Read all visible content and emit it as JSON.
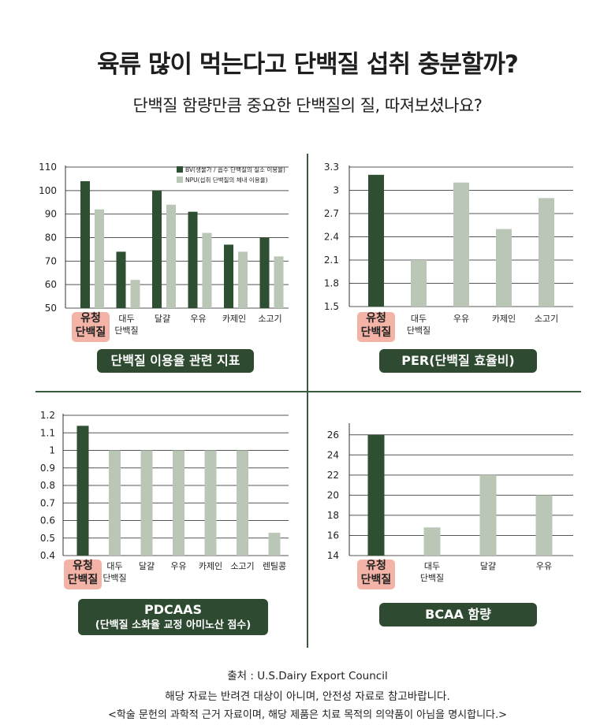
{
  "header": {
    "title": "육류 많이 먹는다고 단백질 섭취 충분할까?",
    "subtitle": "단백질 함량만큼 중요한 단백질의 질, 따져보셨나요?"
  },
  "colors": {
    "dark": "#2e4f31",
    "light": "#bac7b6",
    "highlight": "#f4b3a7",
    "grid": "#555555",
    "pill": "#2e4a31"
  },
  "chart_data": [
    {
      "id": "c1",
      "type": "bar",
      "categories": [
        "유청\n단백질",
        "대두\n단백질",
        "달걀",
        "우유",
        "카제인",
        "소고기"
      ],
      "highlight_index": 0,
      "series": [
        {
          "name": "BV(생물가 / 흡수 단백질의 질소 이용율)",
          "values": [
            104,
            74,
            100,
            91,
            77,
            80
          ],
          "color": "#2e4f31"
        },
        {
          "name": "NPU(섭취 단백질의 체내 이용율)",
          "values": [
            92,
            62,
            94,
            82,
            74,
            72
          ],
          "color": "#bac7b6"
        }
      ],
      "yticks": [
        "110",
        "100",
        "90",
        "80",
        "70",
        "60",
        "50"
      ],
      "ylim": [
        50,
        110
      ],
      "grid": true,
      "legend": "top-right",
      "title_lines": [
        "단백질 이용율 관련 지표"
      ]
    },
    {
      "id": "c2",
      "type": "bar",
      "categories": [
        "유청\n단백질",
        "대두\n단백질",
        "우유",
        "카제인",
        "소고기"
      ],
      "highlight_index": 0,
      "values": [
        3.2,
        2.1,
        3.1,
        2.5,
        2.9
      ],
      "yticks": [
        "3.3",
        "3",
        "2.7",
        "2.4",
        "2.1",
        "1.8",
        "1.5"
      ],
      "ylim": [
        1.5,
        3.3
      ],
      "grid": true,
      "title_lines": [
        "PER(단백질 효율비)"
      ]
    },
    {
      "id": "c3",
      "type": "bar",
      "categories": [
        "유청\n단백질",
        "대두\n단백질",
        "달걀",
        "우유",
        "카제인",
        "소고기",
        "렌틸콩"
      ],
      "highlight_index": 0,
      "values": [
        1.14,
        1.0,
        1.0,
        1.0,
        1.0,
        1.0,
        0.53
      ],
      "yticks": [
        "1.2",
        "1.1",
        "1",
        "0.9",
        "0.8",
        "0.7",
        "0.6",
        "0.5",
        "0.4"
      ],
      "ylim": [
        0.4,
        1.2
      ],
      "grid": true,
      "title_lines": [
        "PDCAAS",
        "(단백질 소화율 교정 아미노산 점수)"
      ]
    },
    {
      "id": "c4",
      "type": "bar",
      "categories": [
        "유청\n단백질",
        "대두\n단백질",
        "달걀",
        "우유"
      ],
      "highlight_index": 0,
      "values": [
        26,
        16.8,
        22,
        20
      ],
      "yticks": [
        "26",
        "24",
        "22",
        "20",
        "18",
        "16",
        "14"
      ],
      "ylim": [
        14,
        27
      ],
      "grid": true,
      "title_lines": [
        "BCAA 함량"
      ]
    }
  ],
  "footer": {
    "line1": "출처 : U.S.Dairy Export Council",
    "line2": "해당 자료는 반려견 대상이 아니며, 안전성 자료로 참고바랍니다.",
    "line3": "<학술 문헌의 과학적 근거 자료이며, 해당 제품은 치료 목적의 의약품이 아님을 명시합니다.>"
  }
}
